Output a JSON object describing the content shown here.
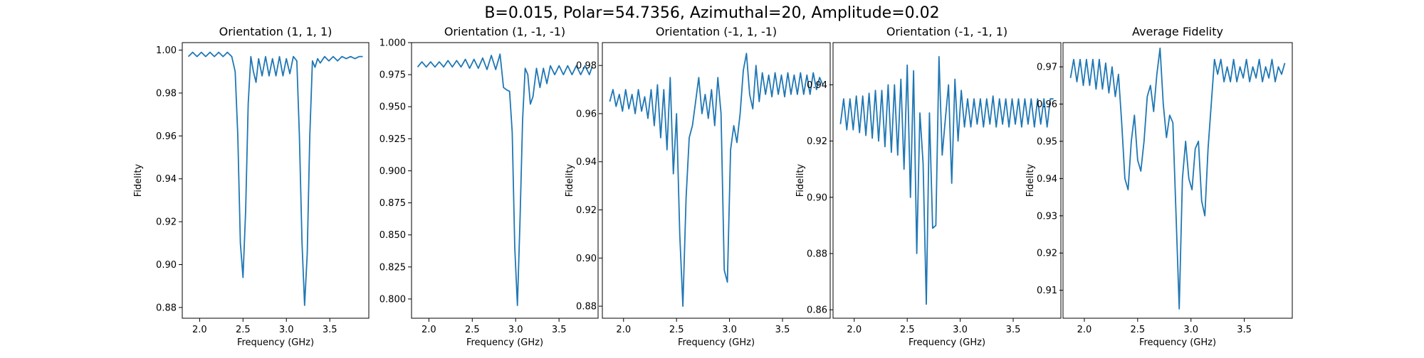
{
  "suptitle": "B=0.015, Polar=54.7356, Azimuthal=20, Amplitude=0.02",
  "colors": {
    "line": "#1f77b4",
    "axes": "#000000"
  },
  "chart_data": [
    {
      "type": "line",
      "title": "Orientation (1, 1, 1)",
      "xlabel": "Frequency (GHz)",
      "ylabel": "Fidelity",
      "xlim": [
        1.8,
        3.95
      ],
      "ylim": [
        0.875,
        1.0035
      ],
      "xticks": [
        2.0,
        2.5,
        3.0,
        3.5
      ],
      "xtick_labels": [
        "2.0",
        "2.5",
        "3.0",
        "3.5"
      ],
      "yticks": [
        0.88,
        0.9,
        0.92,
        0.94,
        0.96,
        0.98,
        1.0
      ],
      "ytick_labels": [
        "0.88",
        "0.90",
        "0.92",
        "0.94",
        "0.96",
        "0.98",
        "1.00"
      ],
      "series": [
        {
          "x": [
            1.87,
            1.92,
            1.97,
            2.02,
            2.07,
            2.12,
            2.17,
            2.22,
            2.27,
            2.32,
            2.37,
            2.41,
            2.44,
            2.47,
            2.5,
            2.53,
            2.56,
            2.59,
            2.62,
            2.65,
            2.68,
            2.72,
            2.76,
            2.8,
            2.84,
            2.88,
            2.92,
            2.96,
            3.0,
            3.04,
            3.08,
            3.12,
            3.15,
            3.18,
            3.21,
            3.24,
            3.27,
            3.3,
            3.33,
            3.36,
            3.39,
            3.44,
            3.49,
            3.54,
            3.59,
            3.64,
            3.69,
            3.74,
            3.79,
            3.84,
            3.88
          ],
          "y": [
            0.997,
            0.999,
            0.997,
            0.999,
            0.997,
            0.999,
            0.997,
            0.999,
            0.997,
            0.999,
            0.997,
            0.99,
            0.96,
            0.91,
            0.894,
            0.925,
            0.975,
            0.997,
            0.99,
            0.985,
            0.996,
            0.988,
            0.997,
            0.988,
            0.996,
            0.988,
            0.997,
            0.988,
            0.996,
            0.989,
            0.997,
            0.995,
            0.96,
            0.91,
            0.881,
            0.905,
            0.96,
            0.995,
            0.992,
            0.996,
            0.994,
            0.997,
            0.995,
            0.997,
            0.995,
            0.997,
            0.996,
            0.997,
            0.996,
            0.997,
            0.997
          ]
        }
      ]
    },
    {
      "type": "line",
      "title": "Orientation (1, -1, -1)",
      "xlabel": "Frequency (GHz)",
      "ylabel": "",
      "xlim": [
        1.8,
        3.95
      ],
      "ylim": [
        0.785,
        1.0
      ],
      "xticks": [
        2.0,
        2.5,
        3.0,
        3.5
      ],
      "xtick_labels": [
        "2.0",
        "2.5",
        "3.0",
        "3.5"
      ],
      "yticks": [
        0.8,
        0.825,
        0.85,
        0.875,
        0.9,
        0.925,
        0.95,
        0.975,
        1.0
      ],
      "ytick_labels": [
        "0.800",
        "0.825",
        "0.850",
        "0.875",
        "0.900",
        "0.925",
        "0.950",
        "0.975",
        "1.000"
      ],
      "series": [
        {
          "x": [
            1.87,
            1.92,
            1.97,
            2.02,
            2.07,
            2.12,
            2.17,
            2.22,
            2.27,
            2.32,
            2.37,
            2.42,
            2.47,
            2.52,
            2.57,
            2.62,
            2.67,
            2.72,
            2.77,
            2.82,
            2.86,
            2.9,
            2.93,
            2.96,
            2.99,
            3.02,
            3.05,
            3.08,
            3.11,
            3.14,
            3.17,
            3.2,
            3.24,
            3.28,
            3.32,
            3.36,
            3.4,
            3.45,
            3.5,
            3.55,
            3.6,
            3.65,
            3.7,
            3.75,
            3.8,
            3.85,
            3.88
          ],
          "y": [
            0.981,
            0.985,
            0.981,
            0.985,
            0.981,
            0.985,
            0.981,
            0.986,
            0.981,
            0.986,
            0.981,
            0.987,
            0.98,
            0.987,
            0.98,
            0.988,
            0.979,
            0.99,
            0.979,
            0.991,
            0.965,
            0.963,
            0.962,
            0.93,
            0.84,
            0.795,
            0.86,
            0.94,
            0.98,
            0.975,
            0.952,
            0.958,
            0.98,
            0.965,
            0.98,
            0.968,
            0.982,
            0.975,
            0.982,
            0.975,
            0.982,
            0.975,
            0.982,
            0.975,
            0.982,
            0.975,
            0.981
          ]
        }
      ]
    },
    {
      "type": "line",
      "title": "Orientation (-1, 1, -1)",
      "xlabel": "Frequency (GHz)",
      "ylabel": "Fidelity",
      "xlim": [
        1.8,
        3.95
      ],
      "ylim": [
        0.875,
        0.9895
      ],
      "xticks": [
        2.0,
        2.5,
        3.0,
        3.5
      ],
      "xtick_labels": [
        "2.0",
        "2.5",
        "3.0",
        "3.5"
      ],
      "yticks": [
        0.88,
        0.9,
        0.92,
        0.94,
        0.96,
        0.98
      ],
      "ytick_labels": [
        "0.88",
        "0.90",
        "0.92",
        "0.94",
        "0.96",
        "0.98"
      ],
      "series": [
        {
          "x": [
            1.87,
            1.9,
            1.93,
            1.96,
            1.99,
            2.02,
            2.05,
            2.08,
            2.11,
            2.14,
            2.17,
            2.2,
            2.23,
            2.26,
            2.29,
            2.32,
            2.35,
            2.38,
            2.41,
            2.44,
            2.47,
            2.5,
            2.53,
            2.56,
            2.59,
            2.62,
            2.65,
            2.68,
            2.71,
            2.74,
            2.77,
            2.8,
            2.83,
            2.86,
            2.89,
            2.92,
            2.95,
            2.98,
            3.01,
            3.04,
            3.07,
            3.1,
            3.13,
            3.16,
            3.19,
            3.22,
            3.25,
            3.28,
            3.31,
            3.34,
            3.37,
            3.4,
            3.43,
            3.46,
            3.49,
            3.52,
            3.55,
            3.58,
            3.61,
            3.64,
            3.67,
            3.7,
            3.73,
            3.76,
            3.79,
            3.82,
            3.85,
            3.88
          ],
          "y": [
            0.965,
            0.97,
            0.963,
            0.968,
            0.961,
            0.97,
            0.962,
            0.968,
            0.96,
            0.97,
            0.961,
            0.967,
            0.958,
            0.97,
            0.955,
            0.972,
            0.95,
            0.97,
            0.945,
            0.975,
            0.935,
            0.96,
            0.91,
            0.88,
            0.925,
            0.95,
            0.955,
            0.965,
            0.975,
            0.96,
            0.968,
            0.958,
            0.97,
            0.955,
            0.975,
            0.96,
            0.895,
            0.89,
            0.945,
            0.955,
            0.948,
            0.96,
            0.978,
            0.985,
            0.968,
            0.962,
            0.98,
            0.965,
            0.977,
            0.968,
            0.976,
            0.967,
            0.977,
            0.968,
            0.976,
            0.967,
            0.977,
            0.968,
            0.976,
            0.968,
            0.977,
            0.968,
            0.976,
            0.968,
            0.977,
            0.97,
            0.975,
            0.972
          ]
        }
      ]
    },
    {
      "type": "line",
      "title": "Orientation (-1, -1, 1)",
      "xlabel": "Frequency (GHz)",
      "ylabel": "Fidelity",
      "xlim": [
        1.8,
        3.95
      ],
      "ylim": [
        0.857,
        0.955
      ],
      "xticks": [
        2.0,
        2.5,
        3.0,
        3.5
      ],
      "xtick_labels": [
        "2.0",
        "2.5",
        "3.0",
        "3.5"
      ],
      "yticks": [
        0.86,
        0.88,
        0.9,
        0.92,
        0.94
      ],
      "ytick_labels": [
        "0.86",
        "0.88",
        "0.90",
        "0.92",
        "0.94"
      ],
      "series": [
        {
          "x": [
            1.87,
            1.9,
            1.93,
            1.96,
            1.99,
            2.02,
            2.05,
            2.08,
            2.11,
            2.14,
            2.17,
            2.2,
            2.23,
            2.26,
            2.29,
            2.32,
            2.35,
            2.38,
            2.41,
            2.44,
            2.47,
            2.5,
            2.53,
            2.56,
            2.59,
            2.62,
            2.65,
            2.68,
            2.71,
            2.74,
            2.77,
            2.8,
            2.83,
            2.86,
            2.89,
            2.92,
            2.95,
            2.98,
            3.01,
            3.04,
            3.07,
            3.1,
            3.13,
            3.16,
            3.19,
            3.22,
            3.25,
            3.28,
            3.31,
            3.34,
            3.37,
            3.4,
            3.43,
            3.46,
            3.49,
            3.52,
            3.55,
            3.58,
            3.61,
            3.64,
            3.67,
            3.7,
            3.73,
            3.76,
            3.79,
            3.82,
            3.85,
            3.88
          ],
          "y": [
            0.926,
            0.935,
            0.924,
            0.935,
            0.924,
            0.936,
            0.923,
            0.936,
            0.922,
            0.937,
            0.921,
            0.938,
            0.92,
            0.938,
            0.918,
            0.94,
            0.916,
            0.94,
            0.915,
            0.942,
            0.91,
            0.947,
            0.9,
            0.945,
            0.88,
            0.93,
            0.912,
            0.862,
            0.93,
            0.889,
            0.89,
            0.95,
            0.915,
            0.928,
            0.94,
            0.905,
            0.942,
            0.92,
            0.938,
            0.925,
            0.935,
            0.925,
            0.935,
            0.926,
            0.935,
            0.925,
            0.935,
            0.926,
            0.936,
            0.925,
            0.935,
            0.926,
            0.935,
            0.925,
            0.935,
            0.926,
            0.935,
            0.925,
            0.935,
            0.926,
            0.935,
            0.925,
            0.935,
            0.926,
            0.935,
            0.925,
            0.935,
            0.935
          ]
        }
      ]
    },
    {
      "type": "line",
      "title": "Average Fidelity",
      "xlabel": "Frequency (GHz)",
      "ylabel": "Fidelity",
      "xlim": [
        1.8,
        3.95
      ],
      "ylim": [
        0.9025,
        0.9765
      ],
      "xticks": [
        2.0,
        2.5,
        3.0,
        3.5
      ],
      "xtick_labels": [
        "2.0",
        "2.5",
        "3.0",
        "3.5"
      ],
      "yticks": [
        0.91,
        0.92,
        0.93,
        0.94,
        0.95,
        0.96,
        0.97
      ],
      "ytick_labels": [
        "0.91",
        "0.92",
        "0.93",
        "0.94",
        "0.95",
        "0.96",
        "0.97"
      ],
      "series": [
        {
          "x": [
            1.87,
            1.9,
            1.93,
            1.96,
            1.99,
            2.02,
            2.05,
            2.08,
            2.11,
            2.14,
            2.17,
            2.2,
            2.23,
            2.26,
            2.29,
            2.32,
            2.35,
            2.38,
            2.41,
            2.44,
            2.47,
            2.5,
            2.53,
            2.56,
            2.59,
            2.62,
            2.65,
            2.68,
            2.71,
            2.74,
            2.77,
            2.8,
            2.83,
            2.86,
            2.89,
            2.92,
            2.95,
            2.98,
            3.01,
            3.04,
            3.07,
            3.1,
            3.13,
            3.16,
            3.19,
            3.22,
            3.25,
            3.28,
            3.31,
            3.34,
            3.37,
            3.4,
            3.43,
            3.46,
            3.49,
            3.52,
            3.55,
            3.58,
            3.61,
            3.64,
            3.67,
            3.7,
            3.73,
            3.76,
            3.79,
            3.82,
            3.85,
            3.88
          ],
          "y": [
            0.967,
            0.972,
            0.966,
            0.972,
            0.965,
            0.972,
            0.965,
            0.972,
            0.964,
            0.972,
            0.964,
            0.971,
            0.963,
            0.97,
            0.962,
            0.968,
            0.955,
            0.94,
            0.937,
            0.95,
            0.957,
            0.945,
            0.942,
            0.95,
            0.962,
            0.965,
            0.958,
            0.968,
            0.975,
            0.96,
            0.951,
            0.957,
            0.955,
            0.93,
            0.905,
            0.94,
            0.95,
            0.94,
            0.937,
            0.948,
            0.95,
            0.934,
            0.93,
            0.948,
            0.96,
            0.972,
            0.968,
            0.972,
            0.966,
            0.97,
            0.966,
            0.972,
            0.966,
            0.97,
            0.967,
            0.972,
            0.966,
            0.97,
            0.967,
            0.972,
            0.966,
            0.97,
            0.967,
            0.972,
            0.966,
            0.97,
            0.968,
            0.971
          ]
        }
      ]
    }
  ]
}
